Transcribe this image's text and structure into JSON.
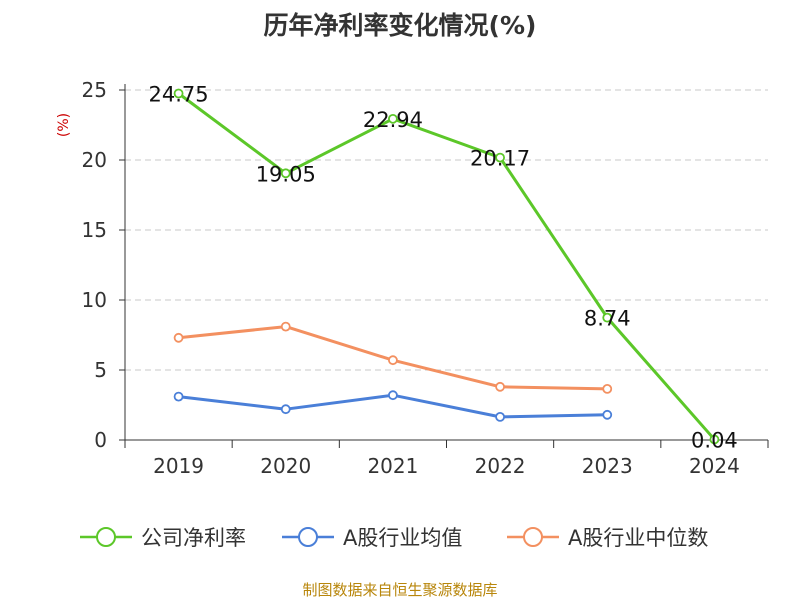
{
  "chart_data": {
    "type": "line",
    "title": "历年净利率变化情况(%)",
    "ylabel": "(%)",
    "xlabel": "",
    "categories": [
      "2019",
      "2020",
      "2021",
      "2022",
      "2023",
      "2024"
    ],
    "ylim": [
      0,
      25
    ],
    "yticks": [
      0,
      5,
      10,
      15,
      20,
      25
    ],
    "grid": true,
    "legend_position": "bottom",
    "series": [
      {
        "name": "公司净利率",
        "color": "#5cc729",
        "values": [
          24.75,
          19.05,
          22.94,
          20.17,
          8.74,
          0.04
        ],
        "show_labels": true
      },
      {
        "name": "A股行业均值",
        "color": "#4a7fd8",
        "values": [
          3.1,
          2.2,
          3.2,
          1.65,
          1.8,
          null
        ],
        "show_labels": false
      },
      {
        "name": "A股行业中位数",
        "color": "#f39060",
        "values": [
          7.3,
          8.1,
          5.7,
          3.8,
          3.65,
          null
        ],
        "show_labels": false
      }
    ]
  },
  "footer": {
    "source": "制图数据来自恒生聚源数据库"
  }
}
